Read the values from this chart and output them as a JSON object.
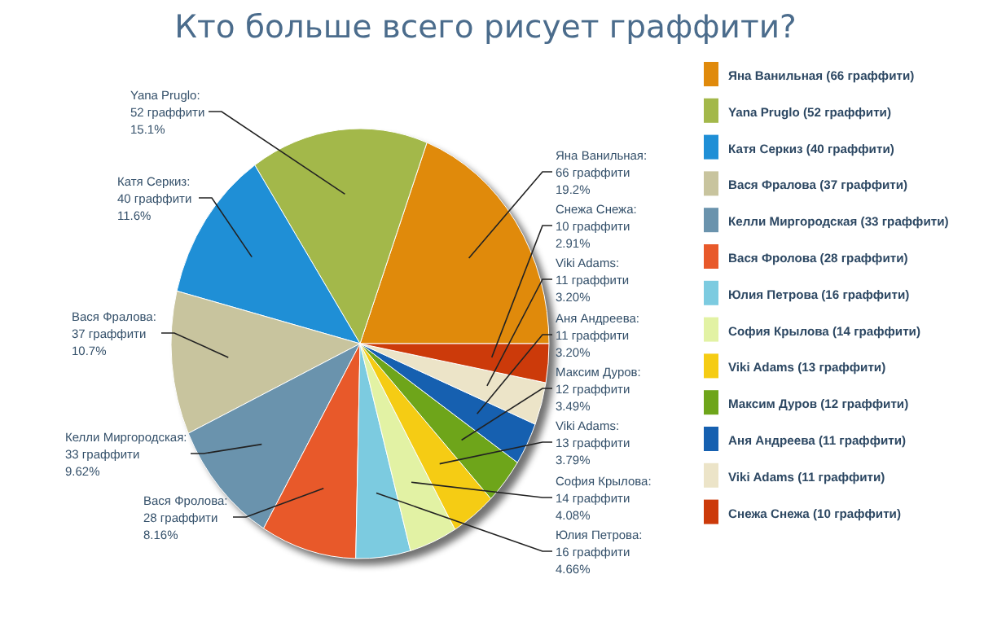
{
  "chart_data": {
    "type": "pie",
    "title": "Кто больше всего рисует граффити?",
    "categories": [
      "Яна Ванильная (66 граффити)",
      "Yana Pruglo (52 граффити)",
      "Катя Серкиз (40 граффити)",
      "Вася Фралова (37 граффити)",
      "Келли Миргородская (33 граффити)",
      "Вася Фролова (28 граффити)",
      "Юлия Петрова (16 граффити)",
      "София Крылова (14 граффити)",
      "Viki Adams (13 граффити)",
      "Максим Дуров (12 граффити)",
      "Аня Андреева (11 граффити)",
      "Viki Adams (11 граффити)",
      "Снежа Снежа (10 граффити)"
    ],
    "values": [
      66,
      52,
      40,
      37,
      33,
      28,
      16,
      14,
      13,
      12,
      11,
      11,
      10
    ],
    "colors": [
      "#e08a0b",
      "#a3b84a",
      "#1f8fd6",
      "#c8c49e",
      "#6a93ad",
      "#e8592a",
      "#7ccbe0",
      "#e2f2a4",
      "#f5cc14",
      "#6ea51a",
      "#1660b0",
      "#ece4c8",
      "#cc3a0a"
    ],
    "value_labels": [
      "Яна Ванильная:\n66 граффити\n19.2%",
      "Yana Pruglo:\n52 граффити\n15.1%",
      "Катя Серкиз:\n40 граффити\n11.6%",
      "Вася Фралова:\n37 граффити\n10.7%",
      "Келли Миргородская:\n33 граффити\n9.62%",
      "Вася Фролова:\n28 граффити\n8.16%",
      "Юлия Петрова:\n16 граффити\n4.66%",
      "София Крылова:\n14 граффити\n4.08%",
      "Viki Adams:\n13 граффити\n3.79%",
      "Максим Дуров:\n12 граффити\n3.49%",
      "Аня Андреева:\n11 граффити\n3.20%",
      "Viki Adams:\n11 граффити\n3.20%",
      "Снежа Снежа:\n10 граффити\n2.91%"
    ],
    "legend": "right"
  }
}
